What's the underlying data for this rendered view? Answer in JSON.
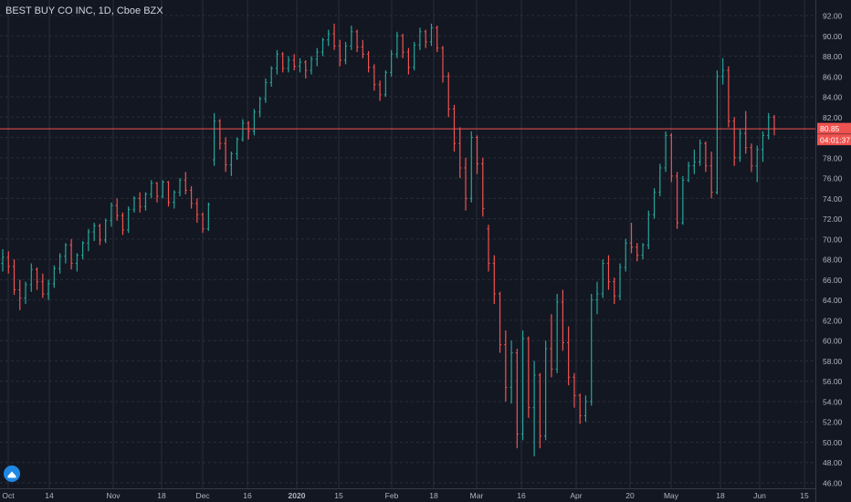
{
  "chart_title": "BEST BUY CO INC, 1D, Cboe BZX",
  "colors": {
    "background": "#131722",
    "grid": "#2a2e39",
    "axis_text": "#b2b5be",
    "up": "#26a69a",
    "down": "#ef5350",
    "price_line": "#ef5350",
    "price_tag_bg": "#ef5350"
  },
  "price_tags": {
    "last_price": "80.85",
    "countdown": "04:01:37"
  },
  "logo_icon": "tradingview-cloud-icon",
  "chart_data": {
    "type": "ohlc-bar",
    "title": "BEST BUY CO INC, 1D, Cboe BZX",
    "ylim": [
      45.5,
      93
    ],
    "y_ticks": [
      "92.00",
      "90.00",
      "88.00",
      "86.00",
      "84.00",
      "82.00",
      "80.00",
      "78.00",
      "76.00",
      "74.00",
      "72.00",
      "70.00",
      "68.00",
      "66.00",
      "64.00",
      "62.00",
      "60.00",
      "58.00",
      "56.00",
      "54.00",
      "52.00",
      "50.00",
      "48.00",
      "46.00"
    ],
    "x_ticks": [
      {
        "date": "2019-10-01",
        "label": "Oct"
      },
      {
        "date": "2019-10-14",
        "label": "14"
      },
      {
        "date": "2019-11-01",
        "label": "Nov"
      },
      {
        "date": "2019-11-18",
        "label": "18"
      },
      {
        "date": "2019-12-02",
        "label": "Dec"
      },
      {
        "date": "2019-12-16",
        "label": "16"
      },
      {
        "date": "2020-01-02",
        "label": "2020"
      },
      {
        "date": "2020-01-15",
        "label": "15"
      },
      {
        "date": "2020-02-03",
        "label": "Feb"
      },
      {
        "date": "2020-02-18",
        "label": "18"
      },
      {
        "date": "2020-03-02",
        "label": "Mar"
      },
      {
        "date": "2020-03-16",
        "label": "16"
      },
      {
        "date": "2020-04-01",
        "label": "Apr"
      },
      {
        "date": "2020-04-20",
        "label": "20"
      },
      {
        "date": "2020-05-01",
        "label": "May"
      },
      {
        "date": "2020-05-18",
        "label": "18"
      },
      {
        "date": "2020-06-01",
        "label": "Jun"
      },
      {
        "date": "2020-06-15",
        "label": "15"
      }
    ],
    "last_price": 80.85,
    "series": [
      {
        "values": [
          [
            67.6,
            69.0,
            66.8,
            68.2
          ],
          [
            68.2,
            68.8,
            66.6,
            67.3
          ],
          [
            67.3,
            68.0,
            64.5,
            65.0
          ],
          [
            65.0,
            66.0,
            63.0,
            64.2
          ],
          [
            64.2,
            65.8,
            63.6,
            65.5
          ],
          [
            65.5,
            67.6,
            64.8,
            67.0
          ],
          [
            67.0,
            67.2,
            65.0,
            65.8
          ],
          [
            65.8,
            66.6,
            64.2,
            64.6
          ],
          [
            64.6,
            66.0,
            64.0,
            65.6
          ],
          [
            65.6,
            67.4,
            65.2,
            67.1
          ],
          [
            67.1,
            68.6,
            66.6,
            68.3
          ],
          [
            68.3,
            69.6,
            67.6,
            69.4
          ],
          [
            69.4,
            70.0,
            67.0,
            67.6
          ],
          [
            67.6,
            68.6,
            66.8,
            68.4
          ],
          [
            68.4,
            69.8,
            68.0,
            69.6
          ],
          [
            69.6,
            71.0,
            68.8,
            70.7
          ],
          [
            70.7,
            71.6,
            69.8,
            71.3
          ],
          [
            71.3,
            71.5,
            69.4,
            69.9
          ],
          [
            69.9,
            72.0,
            69.6,
            71.8
          ],
          [
            71.8,
            73.6,
            71.2,
            73.3
          ],
          [
            73.3,
            74.0,
            71.8,
            72.3
          ],
          [
            72.3,
            72.6,
            70.4,
            70.9
          ],
          [
            70.9,
            73.2,
            70.6,
            72.9
          ],
          [
            72.9,
            74.2,
            72.6,
            74.0
          ],
          [
            74.0,
            74.6,
            72.6,
            73.2
          ],
          [
            73.2,
            74.6,
            72.8,
            74.4
          ],
          [
            74.4,
            75.8,
            74.0,
            75.5
          ],
          [
            75.5,
            75.6,
            73.6,
            74.2
          ],
          [
            74.2,
            75.8,
            74.0,
            75.6
          ],
          [
            75.6,
            75.7,
            73.2,
            73.6
          ],
          [
            73.6,
            74.8,
            73.0,
            74.6
          ],
          [
            74.6,
            76.0,
            74.2,
            75.8
          ],
          [
            75.8,
            76.6,
            74.4,
            74.8
          ],
          [
            74.8,
            75.2,
            73.0,
            73.5
          ],
          [
            73.5,
            74.0,
            71.6,
            72.4
          ],
          [
            72.4,
            72.6,
            70.6,
            71.0
          ],
          [
            71.0,
            73.6,
            70.8,
            73.4
          ],
          [
            77.8,
            82.4,
            77.2,
            81.6
          ],
          [
            81.6,
            81.8,
            78.8,
            79.4
          ],
          [
            79.4,
            80.0,
            76.6,
            77.3
          ],
          [
            77.3,
            78.6,
            76.2,
            78.4
          ],
          [
            78.4,
            80.0,
            77.8,
            79.8
          ],
          [
            79.8,
            81.8,
            79.6,
            81.4
          ],
          [
            81.4,
            81.6,
            79.8,
            80.6
          ],
          [
            80.6,
            82.8,
            80.2,
            82.5
          ],
          [
            82.5,
            84.0,
            82.0,
            83.8
          ],
          [
            83.8,
            85.8,
            83.4,
            85.4
          ],
          [
            85.4,
            87.0,
            85.0,
            86.8
          ],
          [
            86.8,
            88.6,
            86.2,
            88.2
          ],
          [
            88.2,
            88.4,
            86.4,
            86.8
          ],
          [
            86.8,
            88.0,
            86.4,
            87.6
          ],
          [
            87.6,
            88.2,
            86.6,
            87.0
          ],
          [
            87.0,
            87.8,
            86.4,
            87.4
          ],
          [
            87.4,
            87.6,
            85.8,
            86.6
          ],
          [
            86.6,
            88.0,
            86.2,
            87.7
          ],
          [
            87.7,
            88.8,
            87.0,
            88.4
          ],
          [
            88.4,
            89.8,
            88.0,
            89.6
          ],
          [
            89.6,
            90.6,
            89.0,
            90.2
          ],
          [
            90.2,
            91.2,
            88.6,
            89.0
          ],
          [
            89.0,
            89.6,
            87.0,
            87.6
          ],
          [
            87.6,
            89.4,
            87.2,
            89.0
          ],
          [
            89.0,
            91.0,
            88.6,
            90.4
          ],
          [
            90.4,
            90.6,
            88.4,
            88.9
          ],
          [
            88.9,
            89.6,
            87.8,
            88.2
          ],
          [
            88.2,
            88.5,
            86.4,
            86.9
          ],
          [
            86.9,
            87.2,
            84.6,
            85.2
          ],
          [
            85.2,
            85.6,
            83.6,
            84.2
          ],
          [
            84.2,
            86.6,
            84.0,
            86.4
          ],
          [
            86.4,
            88.6,
            86.0,
            88.2
          ],
          [
            88.2,
            90.4,
            87.8,
            90.0
          ],
          [
            90.0,
            90.2,
            87.8,
            88.4
          ],
          [
            88.4,
            88.8,
            86.2,
            86.9
          ],
          [
            86.9,
            89.4,
            86.6,
            89.1
          ],
          [
            89.1,
            90.8,
            88.6,
            90.4
          ],
          [
            90.4,
            90.6,
            88.8,
            89.4
          ],
          [
            89.4,
            91.2,
            89.0,
            90.8
          ],
          [
            90.8,
            91.0,
            88.4,
            88.8
          ],
          [
            88.8,
            89.0,
            85.4,
            86.0
          ],
          [
            86.0,
            86.4,
            82.0,
            82.8
          ],
          [
            82.8,
            83.2,
            78.6,
            79.4
          ],
          [
            79.4,
            81.0,
            76.0,
            77.0
          ],
          [
            77.0,
            78.0,
            72.8,
            74.0
          ],
          [
            74.0,
            80.6,
            73.6,
            80.0
          ],
          [
            80.0,
            80.2,
            76.4,
            77.4
          ],
          [
            77.4,
            78.0,
            72.2,
            73.0
          ],
          [
            71.0,
            71.4,
            66.8,
            67.6
          ],
          [
            67.6,
            68.4,
            63.6,
            64.6
          ],
          [
            64.6,
            64.8,
            58.8,
            59.6
          ],
          [
            59.6,
            61.0,
            54.0,
            55.4
          ],
          [
            55.4,
            60.0,
            53.8,
            58.8
          ],
          [
            58.8,
            59.2,
            49.4,
            50.8
          ],
          [
            50.8,
            61.0,
            50.2,
            60.2
          ],
          [
            60.2,
            60.4,
            52.4,
            53.4
          ],
          [
            53.4,
            58.0,
            48.6,
            56.6
          ],
          [
            56.6,
            56.8,
            49.4,
            50.6
          ],
          [
            50.6,
            60.0,
            50.2,
            59.2
          ],
          [
            59.2,
            62.6,
            56.4,
            57.2
          ],
          [
            57.2,
            64.6,
            56.8,
            63.8
          ],
          [
            63.8,
            65.0,
            59.0,
            59.8
          ],
          [
            59.8,
            61.4,
            55.6,
            56.4
          ],
          [
            56.4,
            56.8,
            53.4,
            54.6
          ],
          [
            54.6,
            54.8,
            51.8,
            52.6
          ],
          [
            52.6,
            54.6,
            52.0,
            54.0
          ],
          [
            54.0,
            64.6,
            53.6,
            64.0
          ],
          [
            64.0,
            65.8,
            62.6,
            64.6
          ],
          [
            64.6,
            68.0,
            64.2,
            67.6
          ],
          [
            67.6,
            68.4,
            65.0,
            65.8
          ],
          [
            65.8,
            66.2,
            63.6,
            64.4
          ],
          [
            64.4,
            67.6,
            64.0,
            67.2
          ],
          [
            67.2,
            70.0,
            66.8,
            69.6
          ],
          [
            69.6,
            71.6,
            68.6,
            69.2
          ],
          [
            69.2,
            69.6,
            67.8,
            68.4
          ],
          [
            68.4,
            69.6,
            68.0,
            69.4
          ],
          [
            69.4,
            72.8,
            69.0,
            72.4
          ],
          [
            72.4,
            75.0,
            72.0,
            74.6
          ],
          [
            74.6,
            77.4,
            74.2,
            77.0
          ],
          [
            77.0,
            80.6,
            76.6,
            80.2
          ],
          [
            80.2,
            80.4,
            75.6,
            76.2
          ],
          [
            76.2,
            76.6,
            71.0,
            71.6
          ],
          [
            71.6,
            76.2,
            71.4,
            75.8
          ],
          [
            75.8,
            77.6,
            75.6,
            77.2
          ],
          [
            77.2,
            78.8,
            76.4,
            77.6
          ],
          [
            77.6,
            79.8,
            77.2,
            79.4
          ],
          [
            79.4,
            79.6,
            76.6,
            77.2
          ],
          [
            77.2,
            78.6,
            74.0,
            74.6
          ],
          [
            74.6,
            86.6,
            74.4,
            86.0
          ],
          [
            86.0,
            87.8,
            85.2,
            86.6
          ],
          [
            86.6,
            87.0,
            81.0,
            81.6
          ],
          [
            81.6,
            82.0,
            77.2,
            78.0
          ],
          [
            78.0,
            80.8,
            77.6,
            80.4
          ],
          [
            80.4,
            82.6,
            78.4,
            79.0
          ],
          [
            79.0,
            79.4,
            76.6,
            77.2
          ],
          [
            77.2,
            79.2,
            75.6,
            78.8
          ],
          [
            78.8,
            80.6,
            77.6,
            80.2
          ],
          [
            80.2,
            82.4,
            79.8,
            82.0
          ],
          [
            82.0,
            82.2,
            80.2,
            80.85
          ]
        ]
      }
    ]
  }
}
